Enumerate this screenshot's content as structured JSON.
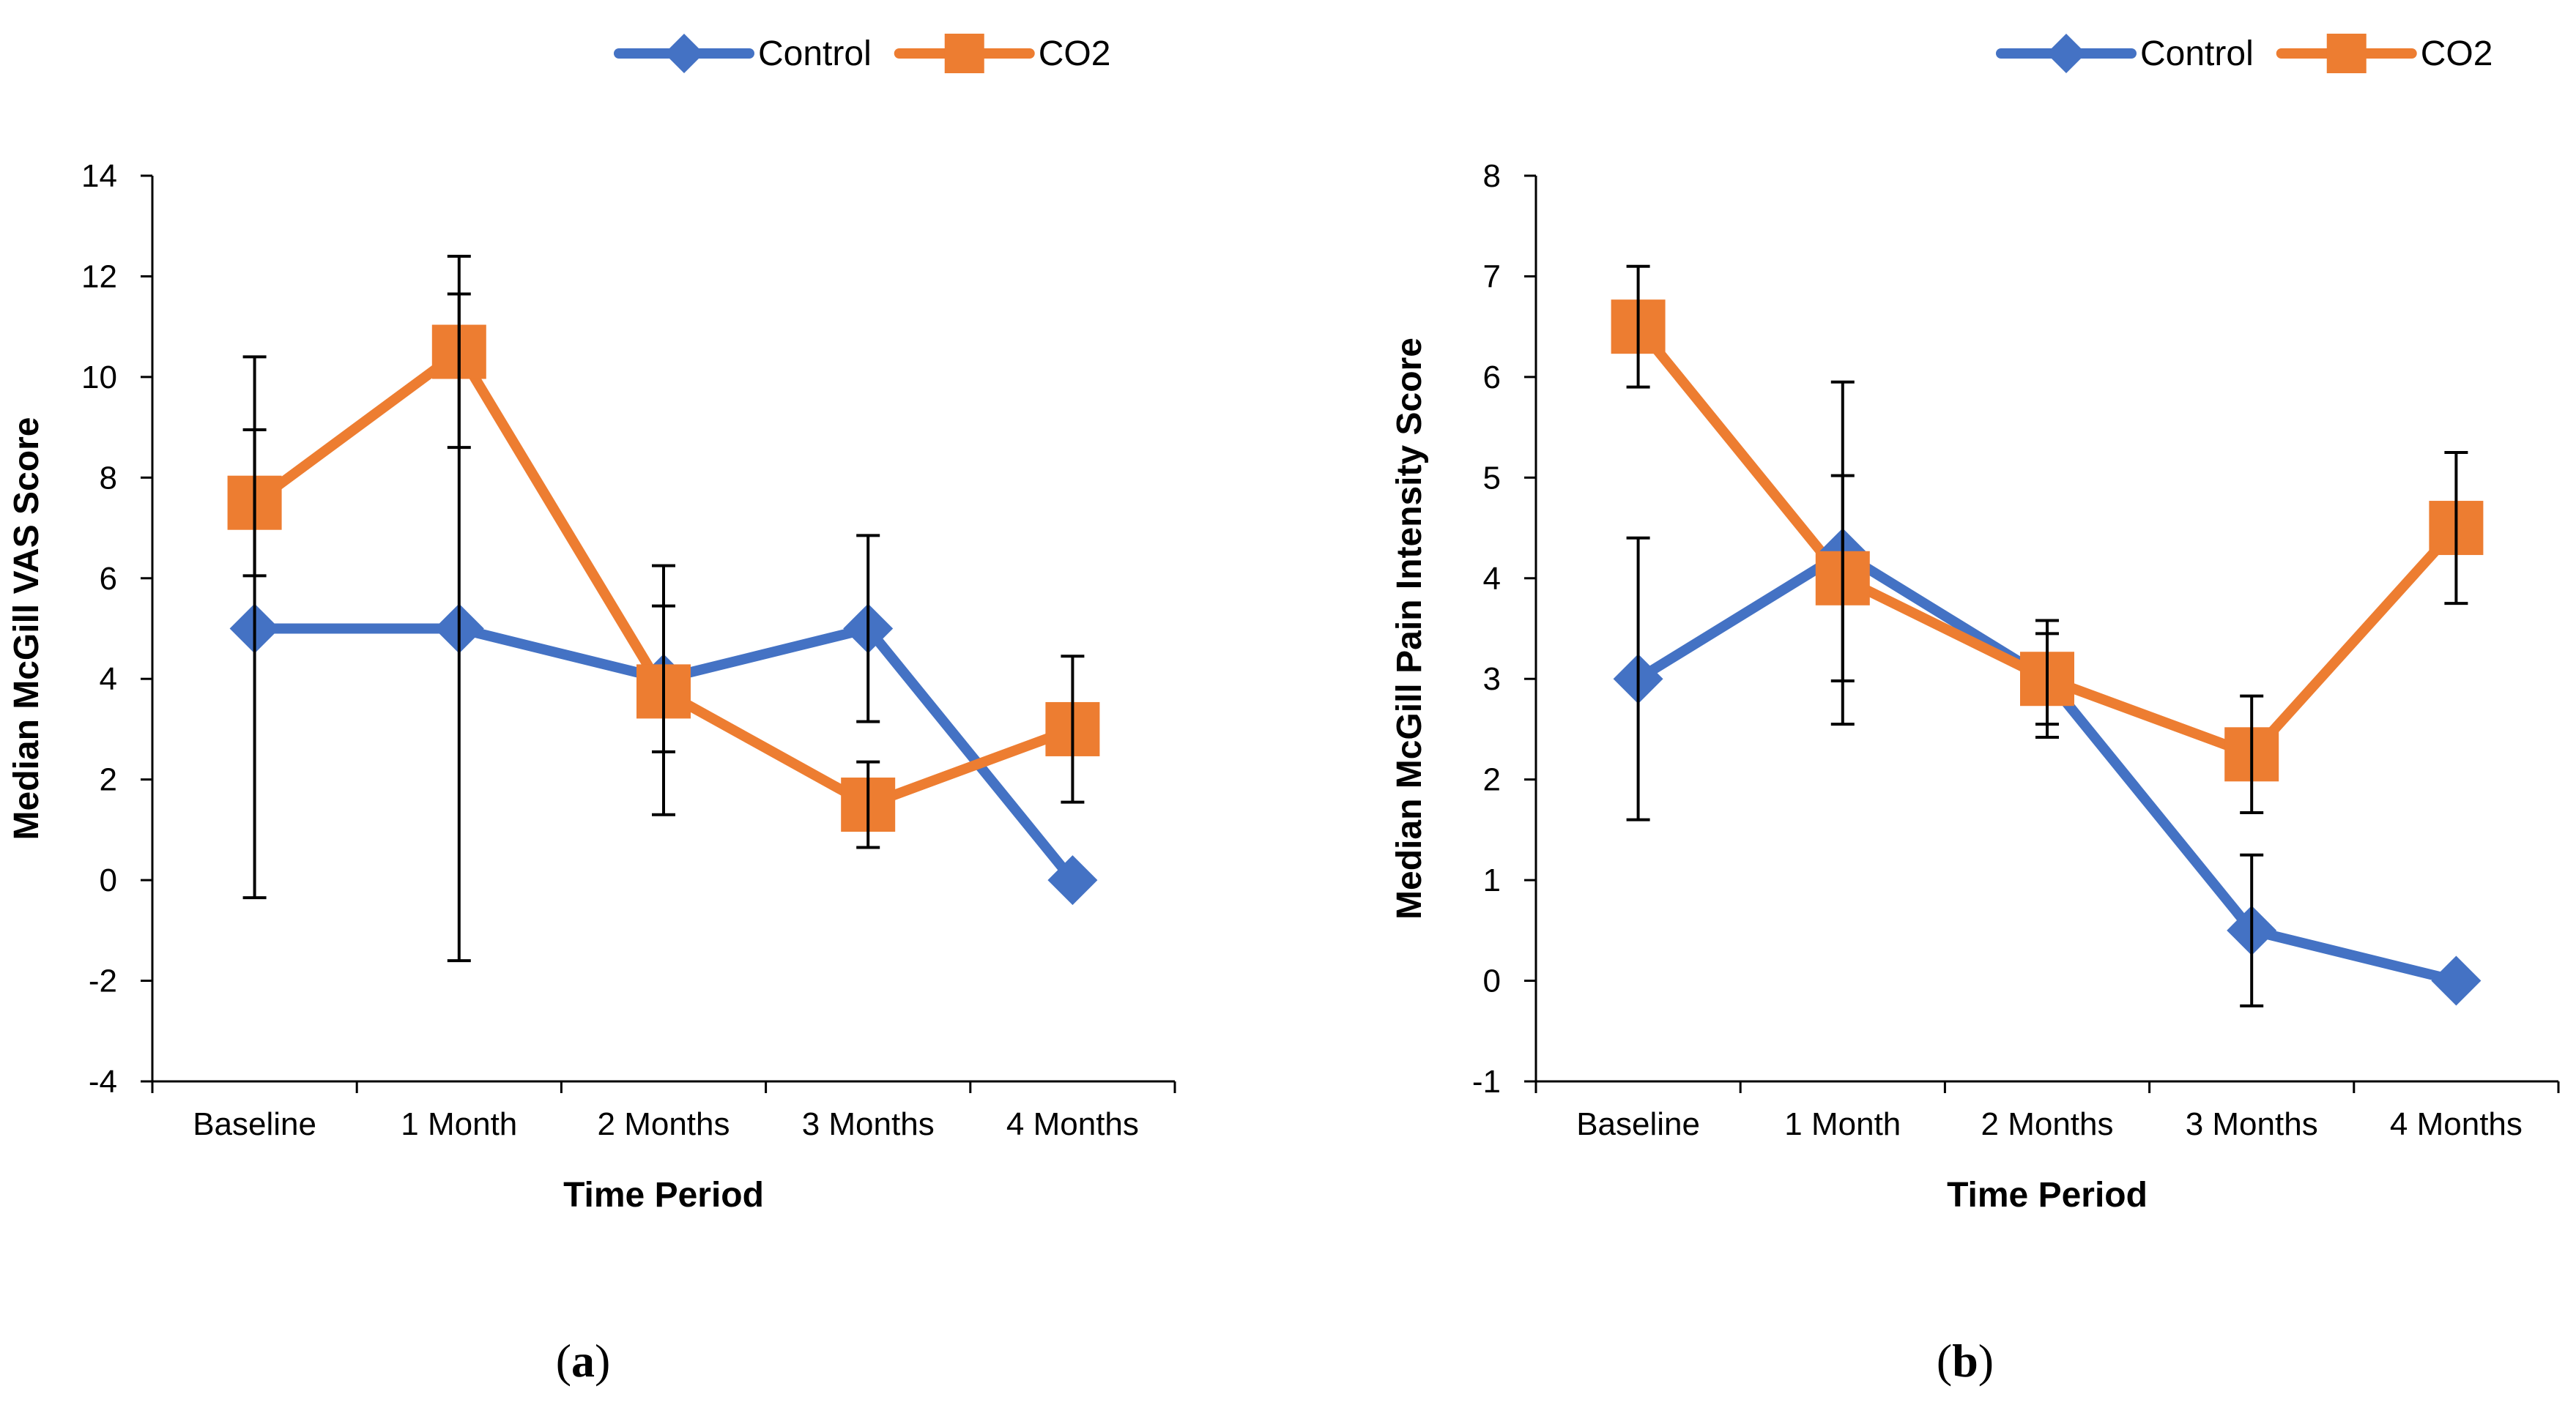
{
  "colors": {
    "control": "#4472C4",
    "co2": "#ED7D31",
    "axis": "#000000",
    "error": "#000000"
  },
  "chart_data": [
    {
      "panel": "a",
      "type": "line",
      "caption": {
        "open": "(",
        "letter": "a",
        "close": ")"
      },
      "categories": [
        "Baseline",
        "1 Month",
        "2 Months",
        "3 Months",
        "4 Months"
      ],
      "xlabel": "Time Period",
      "ylabel": "Median McGill VAS Score",
      "ylim": [
        -4,
        14
      ],
      "yticks": [
        -4,
        -2,
        0,
        2,
        4,
        6,
        8,
        10,
        12,
        14
      ],
      "grid": false,
      "legend_position": "top-right",
      "series": [
        {
          "name": "Control",
          "marker": "diamond",
          "color": "#4472C4",
          "values": [
            5,
            5,
            4,
            5,
            0
          ],
          "error_low": [
            -0.35,
            -1.6,
            2.55,
            3.15,
            null
          ],
          "error_high": [
            10.4,
            11.65,
            5.45,
            6.85,
            null
          ]
        },
        {
          "name": "CO2",
          "marker": "square",
          "color": "#ED7D31",
          "values": [
            7.5,
            10.5,
            3.75,
            1.5,
            3
          ],
          "error_low": [
            6.05,
            8.6,
            1.3,
            0.65,
            1.55
          ],
          "error_high": [
            8.95,
            12.4,
            6.25,
            2.35,
            4.45
          ]
        }
      ]
    },
    {
      "panel": "b",
      "type": "line",
      "caption": {
        "open": "(",
        "letter": "b",
        "close": ")"
      },
      "categories": [
        "Baseline",
        "1 Month",
        "2 Months",
        "3 Months",
        "4 Months"
      ],
      "xlabel": "Time Period",
      "ylabel": "Median McGill Pain Intensity Score",
      "ylim": [
        -1,
        8
      ],
      "yticks": [
        -1,
        0,
        1,
        2,
        3,
        4,
        5,
        6,
        7,
        8
      ],
      "grid": false,
      "legend_position": "top-right",
      "series": [
        {
          "name": "Control",
          "marker": "diamond",
          "color": "#4472C4",
          "values": [
            3,
            4.25,
            3,
            0.5,
            0
          ],
          "error_low": [
            1.6,
            2.55,
            2.55,
            -0.25,
            null
          ],
          "error_high": [
            4.4,
            5.95,
            3.45,
            1.25,
            null
          ]
        },
        {
          "name": "CO2",
          "marker": "square",
          "color": "#ED7D31",
          "values": [
            6.5,
            4,
            3,
            2.25,
            4.5
          ],
          "error_low": [
            5.9,
            2.98,
            2.42,
            1.67,
            3.75
          ],
          "error_high": [
            7.1,
            5.02,
            3.58,
            2.83,
            5.25
          ]
        }
      ]
    }
  ]
}
